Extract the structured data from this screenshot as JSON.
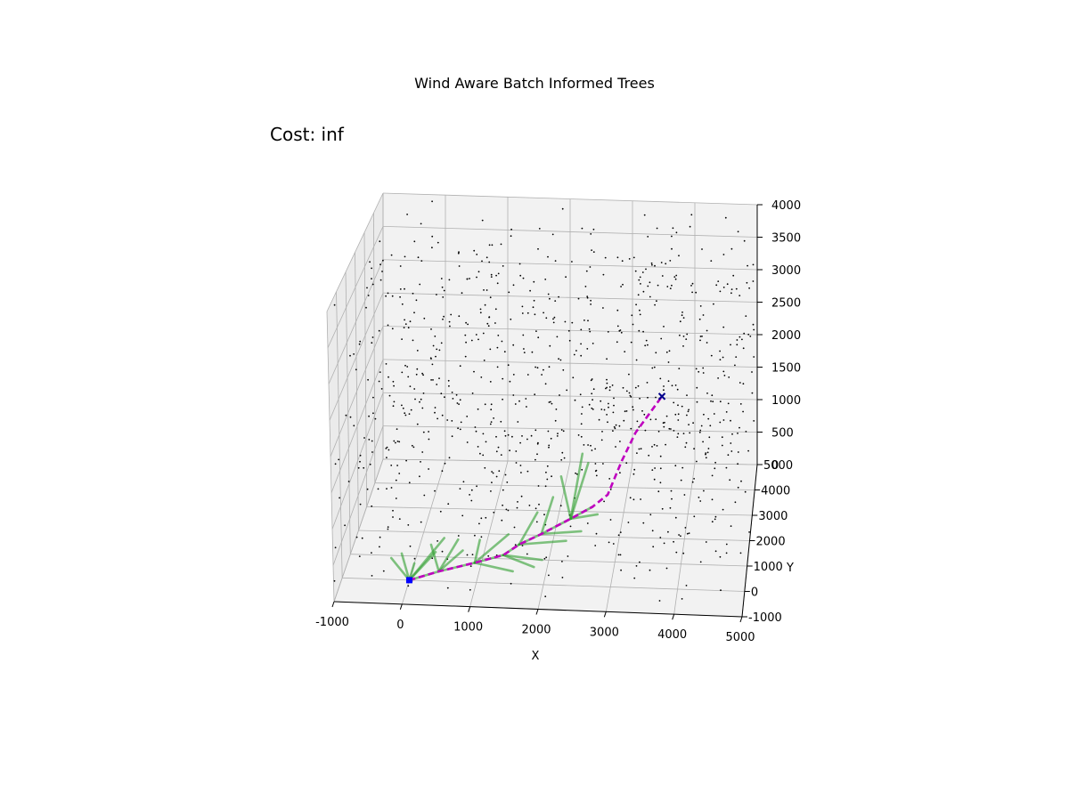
{
  "figure": {
    "title": "Wind Aware Batch Informed Trees",
    "cost_text": "Cost: inf"
  },
  "colors": {
    "background": "#ffffff",
    "pane": "#f2f2f2",
    "grid": "#b0b0b0",
    "samples": "#000000",
    "tree_edges": "#2e9e2e",
    "path": "#bf00bf",
    "start": "#0000ff",
    "goal": "#00008b"
  },
  "chart_data": {
    "type": "scatter",
    "projection": "3d",
    "title": "Wind Aware Batch Informed Trees",
    "annotation": "Cost: inf",
    "xlabel": "X",
    "ylabel": "Y",
    "zlabel": "",
    "xlim": [
      -1000,
      5000
    ],
    "ylim": [
      -1000,
      5000
    ],
    "zlim": [
      0,
      4000
    ],
    "x_ticks": [
      "-1000",
      "0",
      "1000",
      "2000",
      "3000",
      "4000",
      "5000"
    ],
    "y_ticks": [
      "-1000",
      "0",
      "1000",
      "2000",
      "3000",
      "4000",
      "5000"
    ],
    "z_ticks": [
      "0",
      "500",
      "1000",
      "1500",
      "2000",
      "2500",
      "3000",
      "3500",
      "4000"
    ],
    "grid": true,
    "sample_count": 900,
    "start": {
      "x": 0,
      "y": 0,
      "z": 0,
      "marker": "square"
    },
    "goal": {
      "x": 3500,
      "y": 4500,
      "z": 1200,
      "marker": "x"
    },
    "path": {
      "style": "dashed",
      "points": [
        [
          0,
          0,
          0
        ],
        [
          400,
          400,
          0
        ],
        [
          900,
          800,
          0
        ],
        [
          1300,
          1150,
          0
        ],
        [
          1500,
          1600,
          0
        ],
        [
          1800,
          2050,
          0
        ],
        [
          2200,
          2700,
          0
        ],
        [
          2500,
          3200,
          0
        ],
        [
          2700,
          3700,
          0
        ],
        [
          2900,
          4000,
          400
        ],
        [
          3100,
          4200,
          750
        ],
        [
          3500,
          4500,
          1200
        ]
      ]
    },
    "tree_edges": [
      [
        [
          0,
          0,
          0
        ],
        [
          400,
          400,
          0
        ]
      ],
      [
        [
          0,
          0,
          0
        ],
        [
          -300,
          300,
          200
        ]
      ],
      [
        [
          0,
          0,
          0
        ],
        [
          0,
          700,
          0
        ]
      ],
      [
        [
          0,
          0,
          0
        ],
        [
          300,
          900,
          100
        ]
      ],
      [
        [
          0,
          0,
          0
        ],
        [
          400,
          1200,
          200
        ]
      ],
      [
        [
          0,
          0,
          0
        ],
        [
          -200,
          800,
          100
        ]
      ],
      [
        [
          400,
          400,
          0
        ],
        [
          900,
          800,
          0
        ]
      ],
      [
        [
          400,
          400,
          0
        ],
        [
          700,
          1000,
          100
        ]
      ],
      [
        [
          400,
          400,
          0
        ],
        [
          600,
          1300,
          150
        ]
      ],
      [
        [
          400,
          400,
          0
        ],
        [
          200,
          1200,
          100
        ]
      ],
      [
        [
          900,
          800,
          0
        ],
        [
          1300,
          1150,
          0
        ]
      ],
      [
        [
          900,
          800,
          0
        ],
        [
          1500,
          500,
          0
        ]
      ],
      [
        [
          900,
          800,
          0
        ],
        [
          1300,
          2000,
          0
        ]
      ],
      [
        [
          900,
          800,
          0
        ],
        [
          900,
          1600,
          50
        ]
      ],
      [
        [
          1300,
          1150,
          0
        ],
        [
          1500,
          1600,
          0
        ]
      ],
      [
        [
          1300,
          1150,
          0
        ],
        [
          1900,
          1000,
          0
        ]
      ],
      [
        [
          1300,
          1150,
          0
        ],
        [
          1800,
          700,
          0
        ]
      ],
      [
        [
          1500,
          1600,
          0
        ],
        [
          1800,
          2050,
          0
        ]
      ],
      [
        [
          1500,
          1600,
          0
        ],
        [
          1700,
          2500,
          150
        ]
      ],
      [
        [
          1500,
          1600,
          0
        ],
        [
          2200,
          1800,
          0
        ]
      ],
      [
        [
          1800,
          2050,
          0
        ],
        [
          2200,
          2700,
          0
        ]
      ],
      [
        [
          1800,
          2050,
          0
        ],
        [
          2400,
          2200,
          0
        ]
      ],
      [
        [
          1800,
          2050,
          0
        ],
        [
          1900,
          3000,
          200
        ]
      ],
      [
        [
          2200,
          2700,
          0
        ],
        [
          2500,
          3200,
          0
        ]
      ],
      [
        [
          2200,
          2700,
          0
        ],
        [
          2600,
          2900,
          0
        ]
      ],
      [
        [
          2200,
          2700,
          0
        ],
        [
          2000,
          3300,
          400
        ]
      ],
      [
        [
          2200,
          2700,
          0
        ],
        [
          2400,
          3600,
          500
        ]
      ],
      [
        [
          2200,
          2700,
          0
        ],
        [
          2300,
          3700,
          600
        ]
      ]
    ]
  }
}
